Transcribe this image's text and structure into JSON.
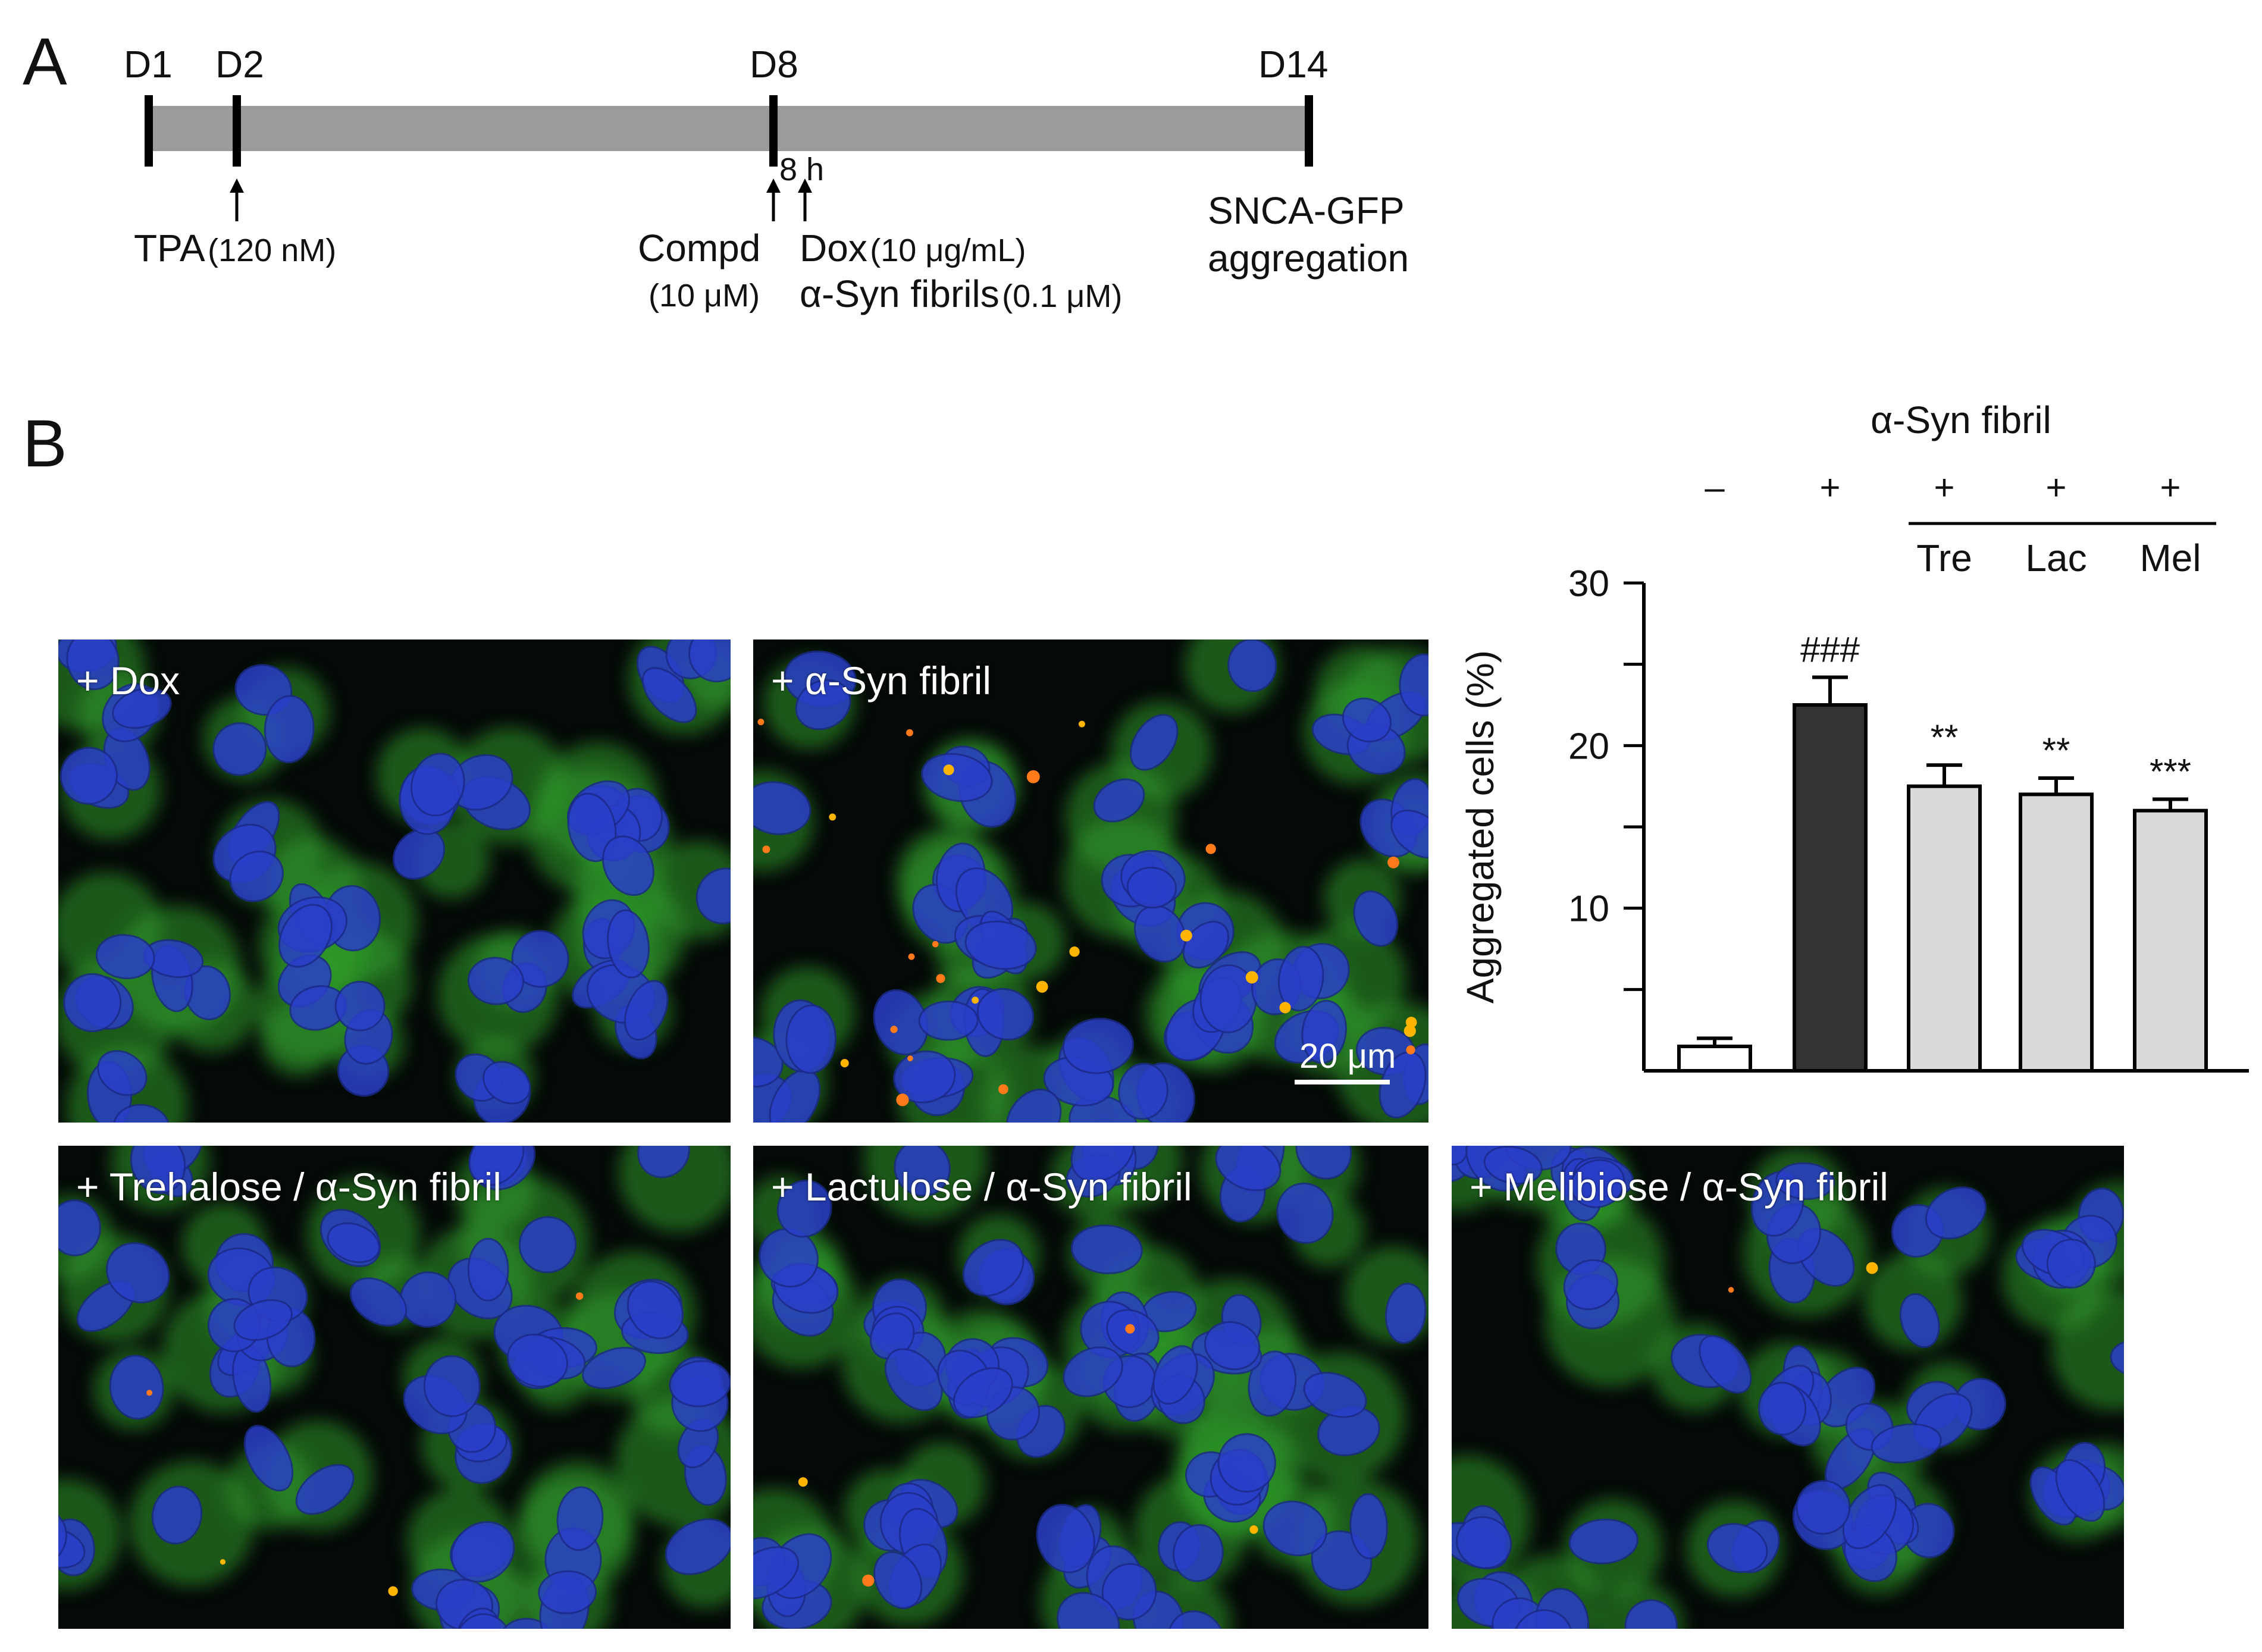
{
  "panel_a": {
    "letter": "A",
    "days": [
      "D1",
      "D2",
      "D8",
      "D14"
    ],
    "tpa_label": "TPA",
    "tpa_conc": "(120 nM)",
    "gap_label": "8 h",
    "compd_label": "Compd",
    "compd_conc": "(10 μM)",
    "dox_label": "Dox",
    "dox_conc": "(10 μg/mL)",
    "fibrils_label": "α-Syn fibrils",
    "fibrils_conc": "(0.1 μM)",
    "end_label_1": "SNCA-GFP",
    "end_label_2": "aggregation"
  },
  "panel_b": {
    "letter": "B",
    "images": [
      {
        "caption": "+ Dox"
      },
      {
        "caption": "+ α-Syn fibril",
        "scale_bar": "20 μm"
      },
      {
        "caption": "+ Trehalose / α-Syn fibril"
      },
      {
        "caption": "+ Lactulose / α-Syn fibril"
      },
      {
        "caption": "+ Melibiose / α-Syn fibril"
      }
    ],
    "colors": {
      "nuclei": "#2a3fc8",
      "gfp": "#2f9a2a",
      "aggregates": "#ffb400",
      "background": "#050a08"
    }
  },
  "chart_data": {
    "type": "bar",
    "header": "α-Syn fibril",
    "fibril_signs": [
      "–",
      "+",
      "+",
      "+",
      "+"
    ],
    "categories": [
      "",
      "",
      "Tre",
      "Lac",
      "Mel"
    ],
    "values": [
      1.5,
      22.5,
      17.5,
      17.0,
      16.0
    ],
    "errors": [
      0.5,
      1.7,
      1.3,
      1.0,
      0.7
    ],
    "significance": [
      "",
      "###",
      "**",
      "**",
      "***"
    ],
    "bar_colors": [
      "#ffffff",
      "#333333",
      "#d9d9d9",
      "#d9d9d9",
      "#d9d9d9"
    ],
    "ylabel": "Aggregated cells (%)",
    "ylim": [
      0,
      30
    ],
    "yticks": [
      10,
      20,
      30
    ],
    "grid": false
  }
}
